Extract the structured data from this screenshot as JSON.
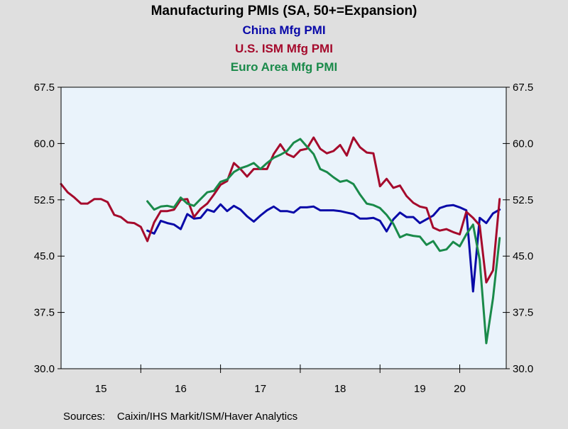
{
  "colors": {
    "background": "#dfdfdf",
    "plot_background": "#eaf3fb",
    "axis": "#000000"
  },
  "source_text": "Sources:    Caixin/IHS Markit/ISM/Haver Analytics",
  "chart_data": {
    "type": "line",
    "title": "Manufacturing PMIs (SA, 50+=Expansion)",
    "xlabel": "",
    "ylabel": "",
    "ylim": [
      30.0,
      67.5
    ],
    "xlim": [
      2015.0,
      2020.583
    ],
    "y_ticks": [
      "67.5",
      "60.0",
      "52.5",
      "45.0",
      "37.5",
      "30.0"
    ],
    "y_tick_values": [
      67.5,
      60.0,
      52.5,
      45.0,
      37.5,
      30.0
    ],
    "x_tick_labels": [
      "15",
      "16",
      "17",
      "18",
      "19",
      "20"
    ],
    "x_tick_label_positions": [
      2015.5,
      2016.5,
      2017.5,
      2018.5,
      2019.5,
      2020.0
    ],
    "x_year_boundaries": [
      2016,
      2017,
      2018,
      2019,
      2020
    ],
    "legend_placement": "top-center",
    "grid": false,
    "series": [
      {
        "name": "China Mfg PMI",
        "color": "#0a0aa8",
        "x": [
          2016.083,
          2016.167,
          2016.25,
          2016.333,
          2016.417,
          2016.5,
          2016.583,
          2016.667,
          2016.75,
          2016.833,
          2016.917,
          2017.0,
          2017.083,
          2017.167,
          2017.25,
          2017.333,
          2017.417,
          2017.5,
          2017.583,
          2017.667,
          2017.75,
          2017.833,
          2017.917,
          2018.0,
          2018.083,
          2018.167,
          2018.25,
          2018.333,
          2018.417,
          2018.5,
          2018.583,
          2018.667,
          2018.75,
          2018.833,
          2018.917,
          2019.0,
          2019.083,
          2019.167,
          2019.25,
          2019.333,
          2019.417,
          2019.5,
          2019.583,
          2019.667,
          2019.75,
          2019.833,
          2019.917,
          2020.0,
          2020.083,
          2020.167,
          2020.25,
          2020.333,
          2020.417,
          2020.5
        ],
        "y": [
          48.4,
          48.0,
          49.7,
          49.4,
          49.2,
          48.6,
          50.6,
          50.0,
          50.1,
          51.2,
          50.9,
          51.9,
          51.0,
          51.7,
          51.2,
          50.3,
          49.6,
          50.4,
          51.1,
          51.6,
          51.0,
          51.0,
          50.8,
          51.5,
          51.5,
          51.6,
          51.1,
          51.1,
          51.1,
          51.0,
          50.8,
          50.6,
          50.0,
          50.0,
          50.1,
          49.7,
          48.3,
          49.9,
          50.8,
          50.2,
          50.2,
          49.4,
          49.9,
          50.4,
          51.4,
          51.7,
          51.8,
          51.5,
          51.1,
          40.3,
          50.1,
          49.4,
          50.7,
          51.2
        ]
      },
      {
        "name": "U.S. ISM Mfg PMI",
        "color": "#a50a2c",
        "x": [
          2015.0,
          2015.083,
          2015.167,
          2015.25,
          2015.333,
          2015.417,
          2015.5,
          2015.583,
          2015.667,
          2015.75,
          2015.833,
          2015.917,
          2016.0,
          2016.083,
          2016.167,
          2016.25,
          2016.333,
          2016.417,
          2016.5,
          2016.583,
          2016.667,
          2016.75,
          2016.833,
          2016.917,
          2017.0,
          2017.083,
          2017.167,
          2017.25,
          2017.333,
          2017.417,
          2017.5,
          2017.583,
          2017.667,
          2017.75,
          2017.833,
          2017.917,
          2018.0,
          2018.083,
          2018.167,
          2018.25,
          2018.333,
          2018.417,
          2018.5,
          2018.583,
          2018.667,
          2018.75,
          2018.833,
          2018.917,
          2019.0,
          2019.083,
          2019.167,
          2019.25,
          2019.333,
          2019.417,
          2019.5,
          2019.583,
          2019.667,
          2019.75,
          2019.833,
          2019.917,
          2020.0,
          2020.083,
          2020.167,
          2020.25,
          2020.333,
          2020.417,
          2020.5
        ],
        "y": [
          54.6,
          53.5,
          52.8,
          52.0,
          52.0,
          52.6,
          52.6,
          52.2,
          50.5,
          50.2,
          49.5,
          49.4,
          48.9,
          47.0,
          49.5,
          51.0,
          51.0,
          51.2,
          52.5,
          52.6,
          50.2,
          51.3,
          52.0,
          53.2,
          54.5,
          55.0,
          57.4,
          56.6,
          55.6,
          56.6,
          56.6,
          56.6,
          58.6,
          59.9,
          58.6,
          58.2,
          59.1,
          59.3,
          60.8,
          59.3,
          58.7,
          59.0,
          59.8,
          58.4,
          60.8,
          59.5,
          58.8,
          58.7,
          54.3,
          55.3,
          54.1,
          54.4,
          53.0,
          52.1,
          51.6,
          51.4,
          48.8,
          48.4,
          48.6,
          48.2,
          47.9,
          50.9,
          50.1,
          49.1,
          41.5,
          43.1,
          52.6
        ]
      },
      {
        "name": "Euro Area Mfg PMI",
        "color": "#1a8a4a",
        "x": [
          2016.083,
          2016.167,
          2016.25,
          2016.333,
          2016.417,
          2016.5,
          2016.583,
          2016.667,
          2016.75,
          2016.833,
          2016.917,
          2017.0,
          2017.083,
          2017.167,
          2017.25,
          2017.333,
          2017.417,
          2017.5,
          2017.583,
          2017.667,
          2017.75,
          2017.833,
          2017.917,
          2018.0,
          2018.083,
          2018.167,
          2018.25,
          2018.333,
          2018.417,
          2018.5,
          2018.583,
          2018.667,
          2018.75,
          2018.833,
          2018.917,
          2019.0,
          2019.083,
          2019.167,
          2019.25,
          2019.333,
          2019.417,
          2019.5,
          2019.583,
          2019.667,
          2019.75,
          2019.833,
          2019.917,
          2020.0,
          2020.083,
          2020.167,
          2020.25,
          2020.333,
          2020.417,
          2020.5
        ],
        "y": [
          52.3,
          51.2,
          51.6,
          51.7,
          51.5,
          52.8,
          52.0,
          51.7,
          52.6,
          53.5,
          53.7,
          54.9,
          55.2,
          56.2,
          56.7,
          57.0,
          57.4,
          56.6,
          57.4,
          58.1,
          58.5,
          59.0,
          60.1,
          60.6,
          59.6,
          58.6,
          56.6,
          56.2,
          55.5,
          54.9,
          55.1,
          54.6,
          53.2,
          52.0,
          51.8,
          51.4,
          50.5,
          49.3,
          47.5,
          47.9,
          47.7,
          47.6,
          46.5,
          47.0,
          45.7,
          45.9,
          46.9,
          46.3,
          47.9,
          49.2,
          44.5,
          33.4,
          39.4,
          47.4
        ]
      }
    ]
  }
}
